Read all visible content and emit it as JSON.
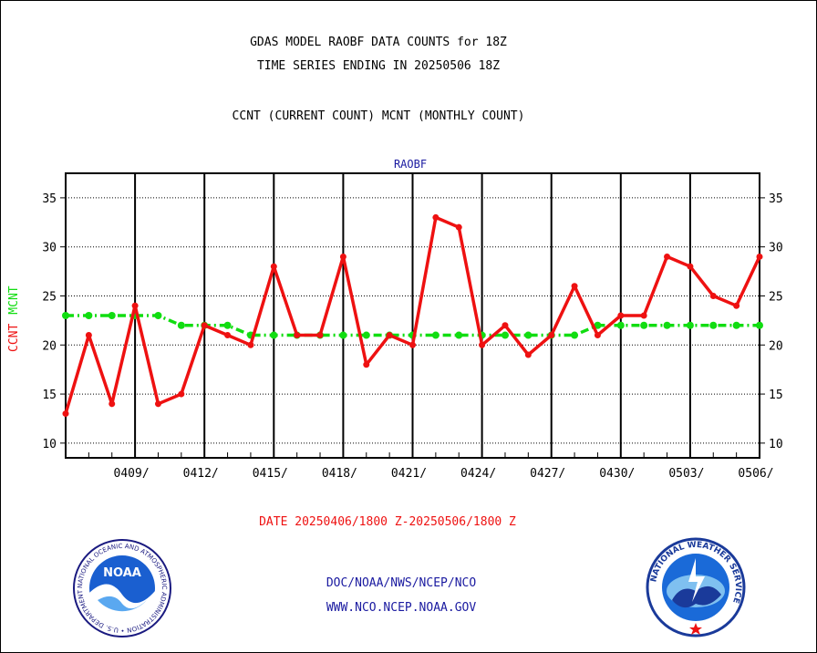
{
  "header": {
    "line1": "GDAS MODEL RAOBF DATA COUNTS for 18Z",
    "line2": "TIME SERIES ENDING IN 20250506 18Z",
    "line3": "CCNT (CURRENT COUNT) MCNT (MONTHLY COUNT)"
  },
  "footer": {
    "date_range": "DATE 20250406/1800 Z-20250506/1800 Z",
    "org": "DOC/NOAA/NWS/NCEP/NCO",
    "url": "WWW.NCO.NCEP.NOAA.GOV"
  },
  "logos": {
    "noaa_text": "NOAA",
    "noaa_ring": "NATIONAL OCEANIC AND ATMOSPHERIC ADMINISTRATION • U.S. DEPARTMENT OF COMMERCE •",
    "nws_ring": "NATIONAL WEATHER SERVICE"
  },
  "colors": {
    "ccnt": "#ee1111",
    "mcnt": "#11dd11",
    "blue_text": "#1a1aa0"
  },
  "chart_data": {
    "type": "line",
    "title": "RAOBF",
    "ylabel_ccnt": "CCNT",
    "ylabel_mcnt": "MCNT",
    "ylim": [
      8.5,
      37.5
    ],
    "yticks": [
      10,
      15,
      20,
      25,
      30,
      35
    ],
    "x_major_ticks": [
      "0409/",
      "0412/",
      "0415/",
      "0418/",
      "0421/",
      "0424/",
      "0427/",
      "0430/",
      "0503/",
      "0506/"
    ],
    "x_start_date": "20250406",
    "grid": true,
    "series": [
      {
        "name": "CCNT",
        "values": [
          13,
          21,
          14,
          24,
          14,
          15,
          22,
          21,
          20,
          28,
          21,
          21,
          29,
          18,
          21,
          20,
          33,
          32,
          20,
          22,
          19,
          21,
          26,
          21,
          23,
          23,
          29,
          28,
          25,
          24,
          29
        ]
      },
      {
        "name": "MCNT",
        "values": [
          23,
          23,
          23,
          23,
          23,
          22,
          22,
          22,
          21,
          21,
          21,
          21,
          21,
          21,
          21,
          21,
          21,
          21,
          21,
          21,
          21,
          21,
          21,
          22,
          22,
          22,
          22,
          22,
          22,
          22,
          22
        ]
      }
    ]
  }
}
